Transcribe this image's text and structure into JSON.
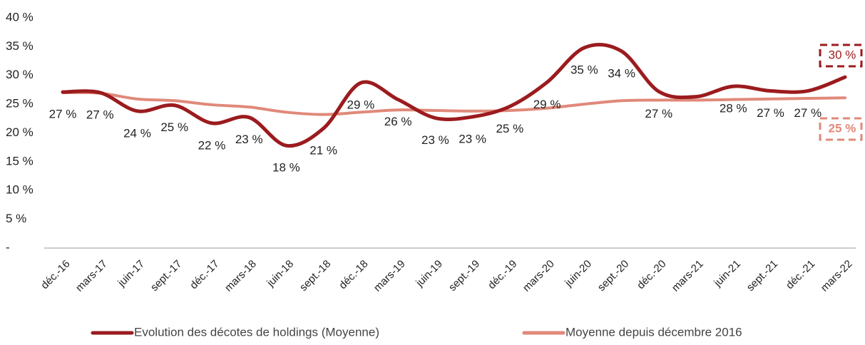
{
  "chart_data": {
    "type": "line",
    "categories": [
      "déc.-16",
      "mars-17",
      "juin-17",
      "sept.-17",
      "déc.-17",
      "mars-18",
      "juin-18",
      "sept.-18",
      "déc.-18",
      "mars-19",
      "juin-19",
      "sept.-19",
      "déc.-19",
      "mars-20",
      "juin-20",
      "sept.-20",
      "déc.-20",
      "mars-21",
      "juin-21",
      "sept.-21",
      "déc.-21",
      "mars-22"
    ],
    "series": [
      {
        "name": "Evolution des décotes de holdings (Moyenne)",
        "color": "#9b1b1e",
        "values": [
          27.1,
          27,
          23.8,
          24.8,
          21.7,
          22.7,
          17.8,
          20.8,
          28.7,
          25.8,
          22.6,
          22.8,
          24.6,
          28.8,
          34.8,
          34.2,
          27.2,
          26.3,
          28.1,
          27.3,
          27.3,
          29.7
        ],
        "value_labels": [
          "27 %",
          "27 %",
          "24 %",
          "25 %",
          "22 %",
          "23 %",
          "18 %",
          "21 %",
          "29 %",
          "26 %",
          "23 %",
          "23 %",
          "25 %",
          "29 %",
          "35 %",
          "34 %",
          "27 %",
          null,
          "28 %",
          "27 %",
          "27 %",
          null
        ]
      },
      {
        "name": "Moyenne depuis décembre 2016",
        "color": "#e0897a",
        "values": [
          27,
          26.9,
          25.9,
          25.6,
          24.9,
          24.5,
          23.6,
          23.2,
          23.6,
          24,
          23.9,
          23.8,
          23.9,
          24.3,
          25,
          25.6,
          25.7,
          25.7,
          25.8,
          25.9,
          26,
          26.1
        ]
      }
    ],
    "annotations": [
      "30 %",
      "25 %"
    ],
    "ylim": [
      0,
      40
    ],
    "yticks": [
      {
        "value": 0,
        "label": "-"
      },
      {
        "value": 5,
        "label": "5 %"
      },
      {
        "value": 10,
        "label": "10 %"
      },
      {
        "value": 15,
        "label": "15 %"
      },
      {
        "value": 20,
        "label": "20 %"
      },
      {
        "value": 25,
        "label": "25 %"
      },
      {
        "value": 30,
        "label": "30 %"
      },
      {
        "value": 35,
        "label": "35 %"
      },
      {
        "value": 40,
        "label": "40 %"
      }
    ],
    "grid": false
  }
}
